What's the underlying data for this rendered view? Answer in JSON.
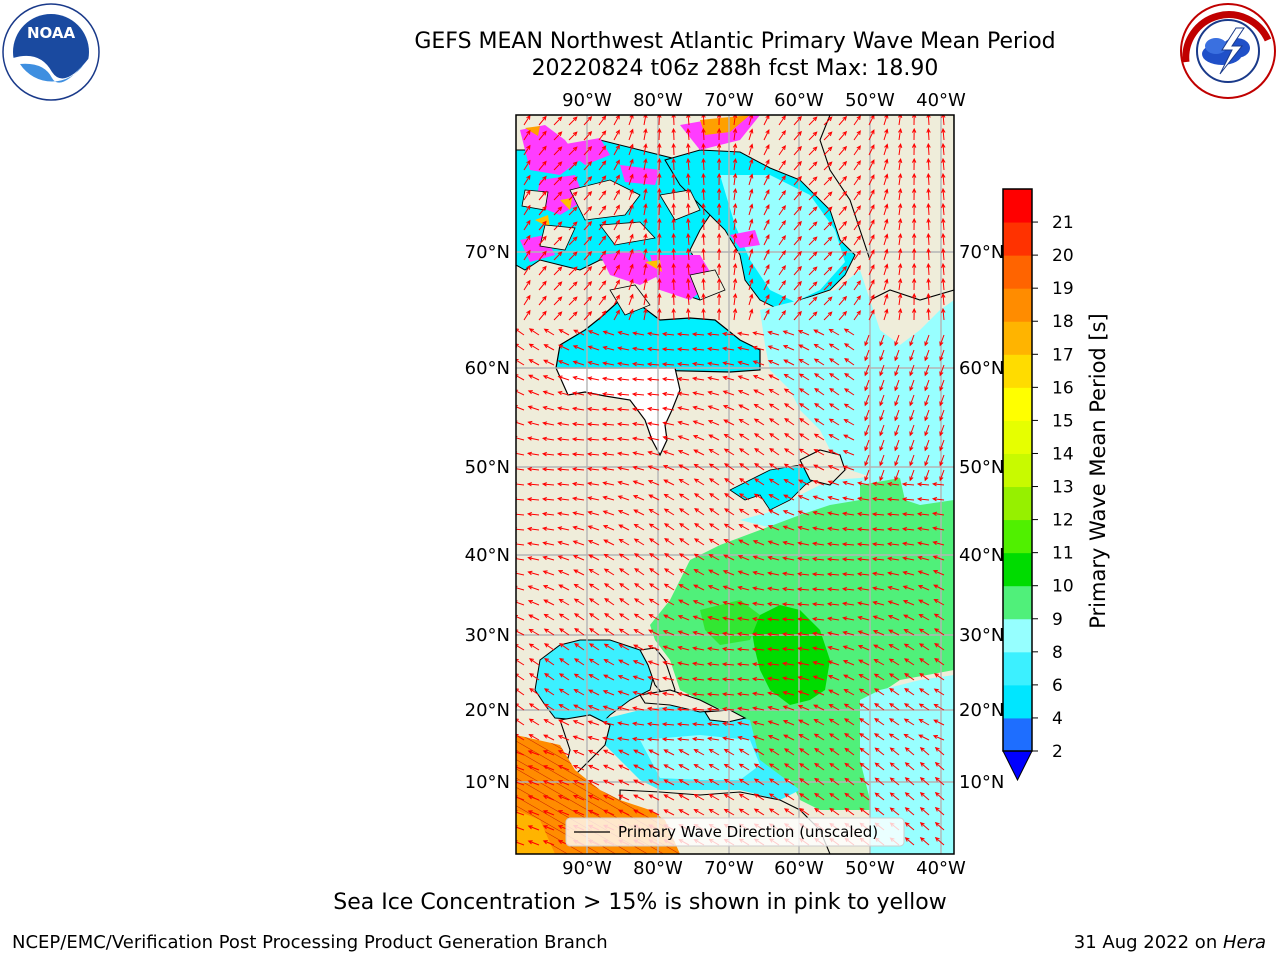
{
  "title": {
    "line1": "GEFS MEAN Northwest Atlantic Primary Wave Mean Period",
    "line2": "20220824 t06z 288h fcst   Max: 18.90"
  },
  "logos": {
    "noara": "NOAA",
    "noaa_ring": "NATIONAL OCEANIC AND ATMOSPHERIC ADMINISTRATION · U.S. DEPARTMENT OF COMMERCE",
    "nws_ring": "NATIONAL WEATHER SERVICE"
  },
  "map": {
    "lon_labels": [
      "90°W",
      "80°W",
      "70°W",
      "60°W",
      "50°W",
      "40°W"
    ],
    "lat_labels": [
      "70°N",
      "60°N",
      "50°N",
      "40°N",
      "30°N",
      "20°N",
      "10°N"
    ],
    "legend_label": "Primary Wave Direction (unscaled)",
    "land_color": "#efedda",
    "arrow_color": "#ff0000"
  },
  "colorbar": {
    "label": "Primary Wave Mean Period [s]",
    "ticks": [
      "2",
      "4",
      "6",
      "8",
      "9",
      "10",
      "11",
      "12",
      "13",
      "14",
      "15",
      "16",
      "17",
      "18",
      "19",
      "20",
      "21"
    ],
    "colors": [
      "#1e6eff",
      "#00e6ff",
      "#3cf0ff",
      "#96ffff",
      "#50f07a",
      "#00dc00",
      "#50f000",
      "#96f000",
      "#c8fa00",
      "#e6ff00",
      "#ffff00",
      "#ffdc00",
      "#ffb400",
      "#ff8c00",
      "#ff6400",
      "#ff3200",
      "#ff0000"
    ],
    "under_color": "#0000ff"
  },
  "note": "Sea Ice Concentration > 15% is shown in pink to yellow",
  "footer": {
    "left": "NCEP/EMC/Verification Post Processing Product Generation Branch",
    "date": "31 Aug 2022 on ",
    "host": "Hera"
  }
}
